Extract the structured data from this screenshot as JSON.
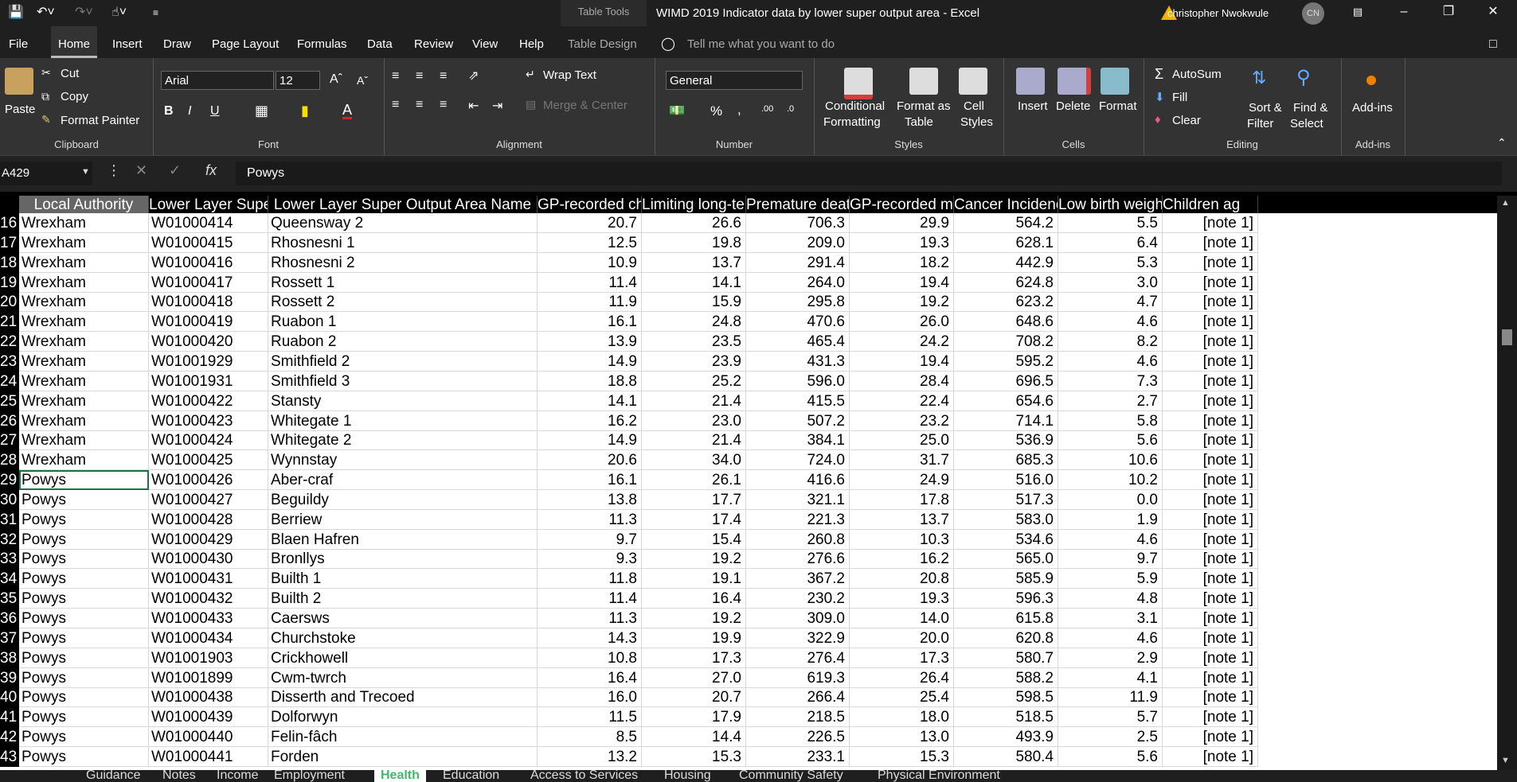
{
  "window": {
    "title": "WIMD 2019 Indicator data by lower super output area  -  Excel",
    "table_tools": "Table Tools",
    "user": "christopher Nwokwule",
    "avatar": "CN"
  },
  "menu": {
    "items": [
      "File",
      "Home",
      "Insert",
      "Draw",
      "Page Layout",
      "Formulas",
      "Data",
      "Review",
      "View",
      "Help",
      "Table Design"
    ],
    "active": "Home",
    "tell_me": "Tell me what you want to do"
  },
  "ribbon": {
    "clipboard": {
      "paste": "Paste",
      "cut": "Cut",
      "copy": "Copy",
      "format_painter": "Format Painter",
      "label": "Clipboard"
    },
    "font": {
      "name": "Arial",
      "size": "12",
      "label": "Font",
      "bold": "B",
      "italic": "I",
      "underline": "U"
    },
    "alignment": {
      "wrap_text": "Wrap Text",
      "merge_center": "Merge & Center",
      "label": "Alignment"
    },
    "number": {
      "format": "General",
      "percent": "%",
      "comma": ",",
      "label": "Number"
    },
    "styles": {
      "conditional": "Conditional",
      "formatting": "Formatting",
      "format_as": "Format as",
      "table": "Table",
      "cell": "Cell",
      "styles": "Styles",
      "label": "Styles"
    },
    "cells": {
      "insert": "Insert",
      "delete": "Delete",
      "format": "Format",
      "label": "Cells"
    },
    "editing": {
      "autosum": "AutoSum",
      "fill": "Fill",
      "clear": "Clear",
      "sort": "Sort &",
      "filter": "Filter",
      "find": "Find &",
      "select": "Select",
      "label": "Editing"
    },
    "addins": {
      "button": "Add-ins",
      "label": "Add-ins"
    }
  },
  "formula_bar": {
    "name_box": "A429",
    "value": "Powys",
    "fx": "fx"
  },
  "columns": [
    "Local Authority",
    "Lower Layer Super O",
    "Lower Layer Super Output Area Name",
    "GP-recorded chro",
    "Limiting long-term",
    "Premature death (",
    "GP-recorded men",
    "Cancer Incidence",
    "Low birth weight (",
    "Children ag"
  ],
  "rows": [
    {
      "n": "16",
      "a": "Wrexham",
      "b": "W01000414",
      "c": "Queensway 2",
      "d": "20.7",
      "e": "26.6",
      "f": "706.3",
      "g": "29.9",
      "h": "564.2",
      "i": "5.5",
      "j": "[note 1]"
    },
    {
      "n": "17",
      "a": "Wrexham",
      "b": "W01000415",
      "c": "Rhosnesni 1",
      "d": "12.5",
      "e": "19.8",
      "f": "209.0",
      "g": "19.3",
      "h": "628.1",
      "i": "6.4",
      "j": "[note 1]"
    },
    {
      "n": "18",
      "a": "Wrexham",
      "b": "W01000416",
      "c": "Rhosnesni 2",
      "d": "10.9",
      "e": "13.7",
      "f": "291.4",
      "g": "18.2",
      "h": "442.9",
      "i": "5.3",
      "j": "[note 1]"
    },
    {
      "n": "19",
      "a": "Wrexham",
      "b": "W01000417",
      "c": "Rossett 1",
      "d": "11.4",
      "e": "14.1",
      "f": "264.0",
      "g": "19.4",
      "h": "624.8",
      "i": "3.0",
      "j": "[note 1]"
    },
    {
      "n": "20",
      "a": "Wrexham",
      "b": "W01000418",
      "c": "Rossett 2",
      "d": "11.9",
      "e": "15.9",
      "f": "295.8",
      "g": "19.2",
      "h": "623.2",
      "i": "4.7",
      "j": "[note 1]"
    },
    {
      "n": "21",
      "a": "Wrexham",
      "b": "W01000419",
      "c": "Ruabon 1",
      "d": "16.1",
      "e": "24.8",
      "f": "470.6",
      "g": "26.0",
      "h": "648.6",
      "i": "4.6",
      "j": "[note 1]"
    },
    {
      "n": "22",
      "a": "Wrexham",
      "b": "W01000420",
      "c": "Ruabon 2",
      "d": "13.9",
      "e": "23.5",
      "f": "465.4",
      "g": "24.2",
      "h": "708.2",
      "i": "8.2",
      "j": "[note 1]"
    },
    {
      "n": "23",
      "a": "Wrexham",
      "b": "W01001929",
      "c": "Smithfield 2",
      "d": "14.9",
      "e": "23.9",
      "f": "431.3",
      "g": "19.4",
      "h": "595.2",
      "i": "4.6",
      "j": "[note 1]"
    },
    {
      "n": "24",
      "a": "Wrexham",
      "b": "W01001931",
      "c": "Smithfield 3",
      "d": "18.8",
      "e": "25.2",
      "f": "596.0",
      "g": "28.4",
      "h": "696.5",
      "i": "7.3",
      "j": "[note 1]"
    },
    {
      "n": "25",
      "a": "Wrexham",
      "b": "W01000422",
      "c": "Stansty",
      "d": "14.1",
      "e": "21.4",
      "f": "415.5",
      "g": "22.4",
      "h": "654.6",
      "i": "2.7",
      "j": "[note 1]"
    },
    {
      "n": "26",
      "a": "Wrexham",
      "b": "W01000423",
      "c": "Whitegate 1",
      "d": "16.2",
      "e": "23.0",
      "f": "507.2",
      "g": "23.2",
      "h": "714.1",
      "i": "5.8",
      "j": "[note 1]"
    },
    {
      "n": "27",
      "a": "Wrexham",
      "b": "W01000424",
      "c": "Whitegate 2",
      "d": "14.9",
      "e": "21.4",
      "f": "384.1",
      "g": "25.0",
      "h": "536.9",
      "i": "5.6",
      "j": "[note 1]"
    },
    {
      "n": "28",
      "a": "Wrexham",
      "b": "W01000425",
      "c": "Wynnstay",
      "d": "20.6",
      "e": "34.0",
      "f": "724.0",
      "g": "31.7",
      "h": "685.3",
      "i": "10.6",
      "j": "[note 1]"
    },
    {
      "n": "29",
      "a": "Powys",
      "b": "W01000426",
      "c": "Aber-craf",
      "d": "16.1",
      "e": "26.1",
      "f": "416.6",
      "g": "24.9",
      "h": "516.0",
      "i": "10.2",
      "j": "[note 1]"
    },
    {
      "n": "30",
      "a": "Powys",
      "b": "W01000427",
      "c": "Beguildy",
      "d": "13.8",
      "e": "17.7",
      "f": "321.1",
      "g": "17.8",
      "h": "517.3",
      "i": "0.0",
      "j": "[note 1]"
    },
    {
      "n": "31",
      "a": "Powys",
      "b": "W01000428",
      "c": "Berriew",
      "d": "11.3",
      "e": "17.4",
      "f": "221.3",
      "g": "13.7",
      "h": "583.0",
      "i": "1.9",
      "j": "[note 1]"
    },
    {
      "n": "32",
      "a": "Powys",
      "b": "W01000429",
      "c": "Blaen Hafren",
      "d": "9.7",
      "e": "15.4",
      "f": "260.8",
      "g": "10.3",
      "h": "534.6",
      "i": "4.6",
      "j": "[note 1]"
    },
    {
      "n": "33",
      "a": "Powys",
      "b": "W01000430",
      "c": "Bronllys",
      "d": "9.3",
      "e": "19.2",
      "f": "276.6",
      "g": "16.2",
      "h": "565.0",
      "i": "9.7",
      "j": "[note 1]"
    },
    {
      "n": "34",
      "a": "Powys",
      "b": "W01000431",
      "c": "Builth 1",
      "d": "11.8",
      "e": "19.1",
      "f": "367.2",
      "g": "20.8",
      "h": "585.9",
      "i": "5.9",
      "j": "[note 1]"
    },
    {
      "n": "35",
      "a": "Powys",
      "b": "W01000432",
      "c": "Builth 2",
      "d": "11.4",
      "e": "16.4",
      "f": "230.2",
      "g": "19.3",
      "h": "596.3",
      "i": "4.8",
      "j": "[note 1]"
    },
    {
      "n": "36",
      "a": "Powys",
      "b": "W01000433",
      "c": "Caersws",
      "d": "11.3",
      "e": "19.2",
      "f": "309.0",
      "g": "14.0",
      "h": "615.8",
      "i": "3.1",
      "j": "[note 1]"
    },
    {
      "n": "37",
      "a": "Powys",
      "b": "W01000434",
      "c": "Churchstoke",
      "d": "14.3",
      "e": "19.9",
      "f": "322.9",
      "g": "20.0",
      "h": "620.8",
      "i": "4.6",
      "j": "[note 1]"
    },
    {
      "n": "38",
      "a": "Powys",
      "b": "W01001903",
      "c": "Crickhowell",
      "d": "10.8",
      "e": "17.3",
      "f": "276.4",
      "g": "17.3",
      "h": "580.7",
      "i": "2.9",
      "j": "[note 1]"
    },
    {
      "n": "39",
      "a": "Powys",
      "b": "W01001899",
      "c": "Cwm-twrch",
      "d": "16.4",
      "e": "27.0",
      "f": "619.3",
      "g": "26.4",
      "h": "588.2",
      "i": "4.1",
      "j": "[note 1]"
    },
    {
      "n": "40",
      "a": "Powys",
      "b": "W01000438",
      "c": "Disserth and Trecoed",
      "d": "16.0",
      "e": "20.7",
      "f": "266.4",
      "g": "25.4",
      "h": "598.5",
      "i": "11.9",
      "j": "[note 1]"
    },
    {
      "n": "41",
      "a": "Powys",
      "b": "W01000439",
      "c": "Dolforwyn",
      "d": "11.5",
      "e": "17.9",
      "f": "218.5",
      "g": "18.0",
      "h": "518.5",
      "i": "5.7",
      "j": "[note 1]"
    },
    {
      "n": "42",
      "a": "Powys",
      "b": "W01000440",
      "c": "Felin-fâch",
      "d": "8.5",
      "e": "14.4",
      "f": "226.5",
      "g": "13.0",
      "h": "493.9",
      "i": "2.5",
      "j": "[note 1]"
    },
    {
      "n": "43",
      "a": "Powys",
      "b": "W01000441",
      "c": "Forden",
      "d": "13.2",
      "e": "15.3",
      "f": "233.1",
      "g": "15.3",
      "h": "580.4",
      "i": "5.6",
      "j": "[note 1]"
    }
  ],
  "sheets": [
    "Guidance",
    "Notes",
    "Income",
    "Employment",
    "Health",
    "Education",
    "Access to Services",
    "Housing",
    "Community Safety",
    "Physical Environment"
  ],
  "active_sheet": "Health",
  "colors": {
    "grid_bg": "#ffffff",
    "ribbon_bg": "#333333",
    "header_bg": "#000000",
    "accent": "#1e7145"
  }
}
